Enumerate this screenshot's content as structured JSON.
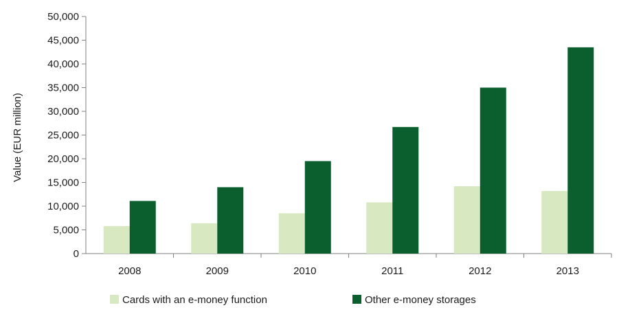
{
  "chart_data": {
    "type": "bar",
    "title": "",
    "xlabel": "",
    "ylabel": "Value (EUR million)",
    "ylim": [
      0,
      50000
    ],
    "yticks": [
      0,
      5000,
      10000,
      15000,
      20000,
      25000,
      30000,
      35000,
      40000,
      45000,
      50000
    ],
    "ytick_labels": [
      "0",
      "5,000",
      "10,000",
      "15,000",
      "20,000",
      "25,000",
      "30,000",
      "35,000",
      "40,000",
      "45,000",
      "50,000"
    ],
    "categories": [
      "2008",
      "2009",
      "2010",
      "2011",
      "2012",
      "2013"
    ],
    "series": [
      {
        "name": "Cards with an e-money function",
        "color": "#d8e8c0",
        "values": [
          5800,
          6400,
          8500,
          10800,
          14200,
          13200
        ]
      },
      {
        "name": "Other e-money storages",
        "color": "#0b5e2d",
        "values": [
          11100,
          14000,
          19500,
          26700,
          35000,
          43500
        ]
      }
    ],
    "grid": false,
    "legend": "bottom"
  }
}
